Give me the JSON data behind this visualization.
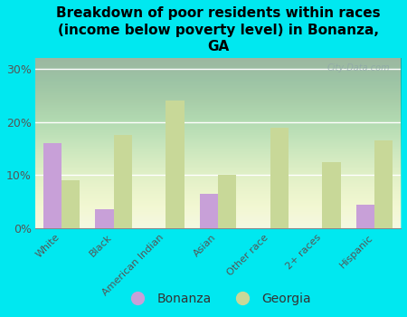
{
  "title": "Breakdown of poor residents within races\n(income below poverty level) in Bonanza,\nGA",
  "categories": [
    "White",
    "Black",
    "American Indian",
    "Asian",
    "Other race",
    "2+ races",
    "Hispanic"
  ],
  "bonanza_values": [
    16.0,
    3.5,
    0.0,
    6.5,
    0.0,
    0.0,
    4.5
  ],
  "georgia_values": [
    9.0,
    17.5,
    24.0,
    10.0,
    19.0,
    12.5,
    16.5
  ],
  "bonanza_color": "#c8a0d8",
  "georgia_color": "#c8d898",
  "background_color": "#00e8f0",
  "ylim": [
    0,
    32
  ],
  "yticks": [
    0,
    10,
    20,
    30
  ],
  "ytick_labels": [
    "0%",
    "10%",
    "20%",
    "30%"
  ],
  "bar_width": 0.35,
  "title_fontsize": 11,
  "watermark": "City-Data.com"
}
